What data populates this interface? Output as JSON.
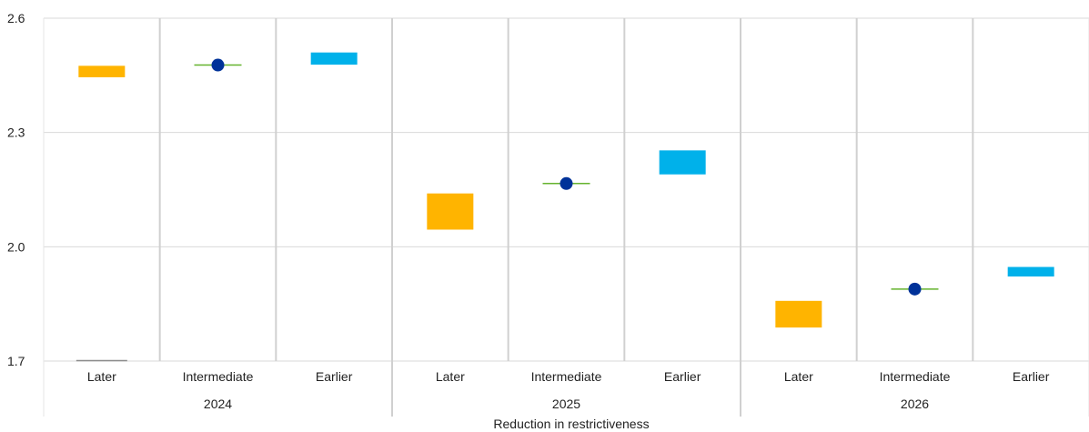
{
  "chart_data": {
    "type": "range-bar",
    "xlabel": "Reduction in restrictiveness",
    "ylabel": "",
    "ylim": [
      1.7,
      2.6
    ],
    "yticks": [
      1.7,
      2.0,
      2.3,
      2.6
    ],
    "ytick_labels": [
      "1.7",
      "2.0",
      "2.3",
      "2.6"
    ],
    "groups": [
      "2024",
      "2025",
      "2026"
    ],
    "categories": [
      "Later",
      "Intermediate",
      "Earlier"
    ],
    "points": [
      {
        "group": "2024",
        "category": "Later",
        "low": 2.445,
        "high": 2.475,
        "kind": "range",
        "color": "#FFB400"
      },
      {
        "group": "2024",
        "category": "Intermediate",
        "value": 2.477,
        "kind": "point",
        "color": "#003299"
      },
      {
        "group": "2024",
        "category": "Earlier",
        "low": 2.478,
        "high": 2.51,
        "kind": "range",
        "color": "#00B1EA"
      },
      {
        "group": "2025",
        "category": "Later",
        "low": 2.045,
        "high": 2.14,
        "kind": "range",
        "color": "#FFB400"
      },
      {
        "group": "2025",
        "category": "Intermediate",
        "value": 2.166,
        "kind": "point",
        "color": "#003299"
      },
      {
        "group": "2025",
        "category": "Earlier",
        "low": 2.19,
        "high": 2.253,
        "kind": "range",
        "color": "#00B1EA"
      },
      {
        "group": "2026",
        "category": "Later",
        "low": 1.788,
        "high": 1.858,
        "kind": "range",
        "color": "#FFB400"
      },
      {
        "group": "2026",
        "category": "Intermediate",
        "value": 1.889,
        "kind": "point",
        "color": "#003299"
      },
      {
        "group": "2026",
        "category": "Earlier",
        "low": 1.922,
        "high": 1.947,
        "kind": "range",
        "color": "#00B1EA"
      }
    ],
    "point_line_color": "#65B32E",
    "grid": true
  }
}
